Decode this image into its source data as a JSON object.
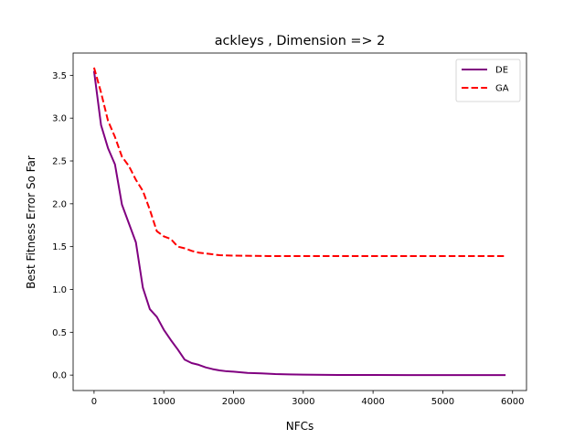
{
  "chart_data": {
    "type": "line",
    "title": "ackleys , Dimension => 2",
    "xlabel": "NFCs",
    "ylabel": "Best Fitness Error So Far",
    "xlim": [
      -300,
      6200
    ],
    "ylim": [
      -0.18,
      3.76
    ],
    "xticks": [
      0,
      1000,
      2000,
      3000,
      4000,
      5000,
      6000
    ],
    "yticks": [
      0.0,
      0.5,
      1.0,
      1.5,
      2.0,
      2.5,
      3.0,
      3.5
    ],
    "xtick_labels": [
      "0",
      "1000",
      "2000",
      "3000",
      "4000",
      "5000",
      "6000"
    ],
    "ytick_labels": [
      "0.0",
      "0.5",
      "1.0",
      "1.5",
      "2.0",
      "2.5",
      "3.0",
      "3.5"
    ],
    "grid": false,
    "legend_position": "top-right",
    "series": [
      {
        "name": "DE",
        "color": "#800080",
        "style": "solid",
        "x": [
          0,
          100,
          200,
          300,
          400,
          500,
          600,
          700,
          800,
          900,
          1000,
          1100,
          1200,
          1300,
          1400,
          1500,
          1600,
          1700,
          1800,
          1900,
          2000,
          2200,
          2400,
          2600,
          2800,
          3000,
          3500,
          4000,
          4500,
          5000,
          5500,
          5900
        ],
        "y": [
          3.55,
          2.92,
          2.65,
          2.46,
          1.99,
          1.77,
          1.55,
          1.02,
          0.77,
          0.68,
          0.53,
          0.41,
          0.3,
          0.18,
          0.14,
          0.12,
          0.09,
          0.07,
          0.055,
          0.045,
          0.04,
          0.025,
          0.02,
          0.012,
          0.008,
          0.005,
          0.002,
          0.001,
          0.0005,
          0.0002,
          0.0001,
          0.0
        ]
      },
      {
        "name": "GA",
        "color": "#ff0000",
        "style": "dashed",
        "x": [
          0,
          100,
          200,
          300,
          400,
          500,
          600,
          700,
          800,
          900,
          1000,
          1100,
          1200,
          1300,
          1400,
          1500,
          1600,
          1800,
          2000,
          2500,
          3000,
          4000,
          5000,
          5900
        ],
        "y": [
          3.59,
          3.3,
          2.97,
          2.78,
          2.55,
          2.44,
          2.28,
          2.15,
          1.93,
          1.68,
          1.62,
          1.59,
          1.5,
          1.48,
          1.45,
          1.43,
          1.42,
          1.4,
          1.395,
          1.39,
          1.39,
          1.39,
          1.39,
          1.39
        ]
      }
    ]
  }
}
